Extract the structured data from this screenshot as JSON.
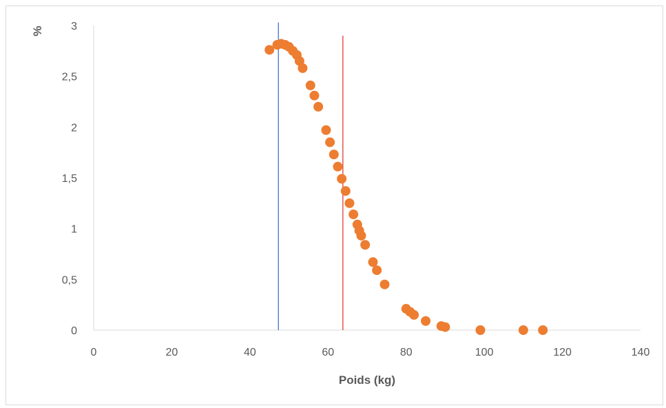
{
  "chart_data": {
    "type": "scatter",
    "title": "",
    "xlabel": "Poids (kg)",
    "ylabel": "%",
    "xlim": [
      0,
      140
    ],
    "ylim": [
      0,
      3
    ],
    "x_ticks": [
      "0",
      "20",
      "40",
      "60",
      "80",
      "100",
      "120",
      "140"
    ],
    "y_ticks": [
      "0",
      "0,5",
      "1",
      "1,5",
      "2",
      "2,5",
      "3"
    ],
    "grid": false,
    "legend": "none",
    "point_color": "#ED7D31",
    "series": [
      {
        "points": [
          {
            "x": 45,
            "y": 2.76
          },
          {
            "x": 47,
            "y": 2.81
          },
          {
            "x": 48,
            "y": 2.82
          },
          {
            "x": 49,
            "y": 2.81
          },
          {
            "x": 50,
            "y": 2.79
          },
          {
            "x": 51,
            "y": 2.75
          },
          {
            "x": 52,
            "y": 2.71
          },
          {
            "x": 52.7,
            "y": 2.65
          },
          {
            "x": 53.5,
            "y": 2.58
          },
          {
            "x": 55.5,
            "y": 2.41
          },
          {
            "x": 56.5,
            "y": 2.31
          },
          {
            "x": 57.5,
            "y": 2.2
          },
          {
            "x": 59.5,
            "y": 1.97
          },
          {
            "x": 60.5,
            "y": 1.85
          },
          {
            "x": 61.5,
            "y": 1.73
          },
          {
            "x": 62.5,
            "y": 1.61
          },
          {
            "x": 63.5,
            "y": 1.49
          },
          {
            "x": 64.5,
            "y": 1.37
          },
          {
            "x": 65.5,
            "y": 1.25
          },
          {
            "x": 66.5,
            "y": 1.14
          },
          {
            "x": 67.5,
            "y": 1.04
          },
          {
            "x": 68,
            "y": 0.98
          },
          {
            "x": 68.5,
            "y": 0.93
          },
          {
            "x": 69.5,
            "y": 0.84
          },
          {
            "x": 71.5,
            "y": 0.67
          },
          {
            "x": 72.5,
            "y": 0.59
          },
          {
            "x": 74.5,
            "y": 0.45
          },
          {
            "x": 80,
            "y": 0.21
          },
          {
            "x": 81,
            "y": 0.18
          },
          {
            "x": 82,
            "y": 0.15
          },
          {
            "x": 85,
            "y": 0.09
          },
          {
            "x": 89,
            "y": 0.04
          },
          {
            "x": 90,
            "y": 0.03
          },
          {
            "x": 99,
            "y": 0.0
          },
          {
            "x": 110,
            "y": 0.0
          },
          {
            "x": 115,
            "y": 0.0
          }
        ]
      }
    ],
    "reference_lines": [
      {
        "x": 47.3,
        "color": "#4472C4",
        "y_top": 3.03
      },
      {
        "x": 63.8,
        "color": "#E03C31",
        "y_top": 2.9
      }
    ]
  }
}
